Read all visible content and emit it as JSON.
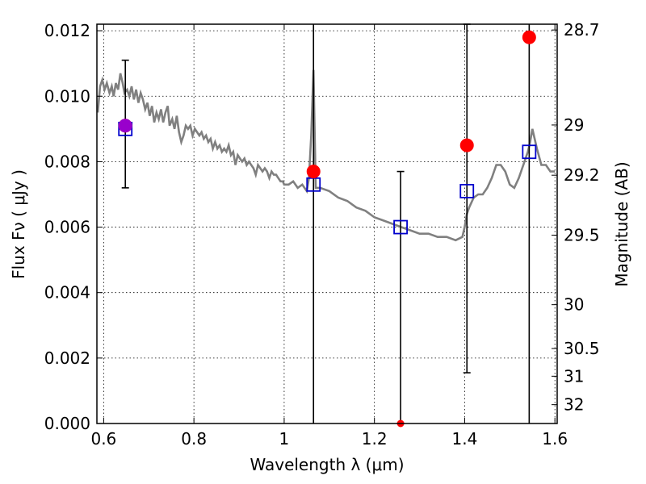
{
  "chart_data": {
    "type": "scatter",
    "xlabel": "Wavelength  λ (μm)",
    "ylabel_left": "Flux  Fν  ( μJy )",
    "ylabel_right": "Magnitude (AB)",
    "xlim": [
      0.585,
      1.605
    ],
    "ylim": [
      0.0,
      0.0122
    ],
    "grid": true,
    "x_ticks": [
      {
        "value": 0.6,
        "label": "0.6"
      },
      {
        "value": 0.8,
        "label": "0.8"
      },
      {
        "value": 1.0,
        "label": "1"
      },
      {
        "value": 1.2,
        "label": "1.2"
      },
      {
        "value": 1.4,
        "label": "1.4"
      },
      {
        "value": 1.6,
        "label": "1.6"
      }
    ],
    "y_ticks_left": [
      {
        "value": 0.0,
        "label": "0.000"
      },
      {
        "value": 0.002,
        "label": "0.002"
      },
      {
        "value": 0.004,
        "label": "0.004"
      },
      {
        "value": 0.006,
        "label": "0.006"
      },
      {
        "value": 0.008,
        "label": "0.008"
      },
      {
        "value": 0.01,
        "label": "0.010"
      },
      {
        "value": 0.012,
        "label": "0.012"
      }
    ],
    "y_ticks_right": [
      {
        "mag": 28.7,
        "label": "28.7"
      },
      {
        "mag": 29,
        "label": "29"
      },
      {
        "mag": 29.2,
        "label": "29.2"
      },
      {
        "mag": 29.5,
        "label": "29.5"
      },
      {
        "mag": 30,
        "label": "30"
      },
      {
        "mag": 30.5,
        "label": "30.5"
      },
      {
        "mag": 31,
        "label": "31"
      },
      {
        "mag": 32,
        "label": "32"
      }
    ],
    "series": [
      {
        "kind": "model_spectrum",
        "color": "#808080",
        "x": [
          0.587,
          0.592,
          0.597,
          0.602,
          0.607,
          0.613,
          0.618,
          0.622,
          0.627,
          0.632,
          0.637,
          0.642,
          0.646,
          0.652,
          0.657,
          0.662,
          0.667,
          0.672,
          0.677,
          0.682,
          0.687,
          0.692,
          0.697,
          0.702,
          0.707,
          0.712,
          0.717,
          0.722,
          0.727,
          0.732,
          0.737,
          0.742,
          0.746,
          0.752,
          0.757,
          0.762,
          0.767,
          0.772,
          0.777,
          0.782,
          0.787,
          0.792,
          0.797,
          0.802,
          0.807,
          0.812,
          0.817,
          0.822,
          0.827,
          0.832,
          0.837,
          0.842,
          0.847,
          0.852,
          0.857,
          0.862,
          0.867,
          0.872,
          0.877,
          0.882,
          0.887,
          0.892,
          0.897,
          0.902,
          0.907,
          0.912,
          0.917,
          0.922,
          0.927,
          0.932,
          0.937,
          0.942,
          0.947,
          0.952,
          0.957,
          0.962,
          0.967,
          0.972,
          0.977,
          0.982,
          0.987,
          0.992,
          0.997,
          1.0,
          1.01,
          1.02,
          1.03,
          1.04,
          1.05,
          1.055,
          1.06,
          1.065,
          1.07,
          1.08,
          1.1,
          1.12,
          1.14,
          1.16,
          1.18,
          1.2,
          1.22,
          1.24,
          1.26,
          1.28,
          1.3,
          1.32,
          1.34,
          1.36,
          1.38,
          1.395,
          1.4,
          1.405,
          1.41,
          1.42,
          1.43,
          1.44,
          1.45,
          1.46,
          1.47,
          1.48,
          1.49,
          1.5,
          1.51,
          1.52,
          1.53,
          1.54,
          1.545,
          1.55,
          1.56,
          1.57,
          1.58,
          1.59,
          1.6
        ],
        "y": [
          0.0095,
          0.0103,
          0.0105,
          0.0102,
          0.0104,
          0.0101,
          0.0103,
          0.01,
          0.0104,
          0.0102,
          0.0107,
          0.0104,
          0.0101,
          0.0102,
          0.01,
          0.0103,
          0.0099,
          0.0102,
          0.0098,
          0.0101,
          0.0099,
          0.0096,
          0.0098,
          0.0094,
          0.0097,
          0.0092,
          0.0095,
          0.0093,
          0.0096,
          0.0092,
          0.0095,
          0.0097,
          0.0091,
          0.0093,
          0.009,
          0.0094,
          0.0089,
          0.0086,
          0.0088,
          0.0091,
          0.009,
          0.0091,
          0.0088,
          0.009,
          0.0089,
          0.0088,
          0.0089,
          0.0087,
          0.0088,
          0.0086,
          0.0087,
          0.0084,
          0.0086,
          0.0084,
          0.0085,
          0.0083,
          0.0084,
          0.0083,
          0.0085,
          0.0082,
          0.0083,
          0.0079,
          0.0082,
          0.0081,
          0.008,
          0.0081,
          0.0079,
          0.008,
          0.0079,
          0.0078,
          0.0076,
          0.0079,
          0.0078,
          0.0077,
          0.0078,
          0.0077,
          0.0075,
          0.0077,
          0.0076,
          0.0076,
          0.0075,
          0.0074,
          0.0074,
          0.0073,
          0.0073,
          0.0074,
          0.0072,
          0.0073,
          0.0071,
          0.0075,
          0.0088,
          0.0108,
          0.0072,
          0.0072,
          0.0071,
          0.0069,
          0.0068,
          0.0066,
          0.0065,
          0.0063,
          0.0062,
          0.0061,
          0.006,
          0.0059,
          0.0058,
          0.0058,
          0.0057,
          0.0057,
          0.0056,
          0.0057,
          0.006,
          0.0064,
          0.0066,
          0.0069,
          0.007,
          0.007,
          0.0072,
          0.0075,
          0.0079,
          0.0079,
          0.0077,
          0.0073,
          0.0072,
          0.0075,
          0.0079,
          0.0083,
          0.0086,
          0.009,
          0.0084,
          0.0079,
          0.0079,
          0.0077,
          0.0077
        ],
        "name": ""
      },
      {
        "kind": "observed",
        "color": "#ff0000",
        "points": [
          {
            "x": 0.648,
            "y": 0.0091
          },
          {
            "x": 1.065,
            "y": 0.0077
          },
          {
            "x": 1.258,
            "y": 0.0
          },
          {
            "x": 1.405,
            "y": 0.0085
          },
          {
            "x": 1.543,
            "y": 0.0118
          }
        ],
        "name": ""
      },
      {
        "kind": "model_bandpass",
        "color": "#0000cc",
        "points": [
          {
            "x": 0.648,
            "y": 0.009
          },
          {
            "x": 1.065,
            "y": 0.0073
          },
          {
            "x": 1.258,
            "y": 0.006
          },
          {
            "x": 1.405,
            "y": 0.0071
          },
          {
            "x": 1.543,
            "y": 0.0083
          }
        ],
        "name": ""
      }
    ],
    "error_bars": [
      {
        "x": 0.648,
        "y_low": 0.0072,
        "y_high": 0.0111,
        "capped": true
      },
      {
        "x": 1.065,
        "y_low": 0.0,
        "y_high": 0.0122,
        "capped": false
      },
      {
        "x": 1.258,
        "y_low": 0.0,
        "y_high": 0.0077,
        "capped": true
      },
      {
        "x": 1.405,
        "y_low": 0.00155,
        "y_high": 0.0122,
        "capped": true
      },
      {
        "x": 1.543,
        "y_low": 0.0,
        "y_high": 0.0122,
        "capped": false
      }
    ],
    "highlight_point": {
      "x": 0.648,
      "y": 0.0091,
      "color": "#9900cc"
    }
  }
}
